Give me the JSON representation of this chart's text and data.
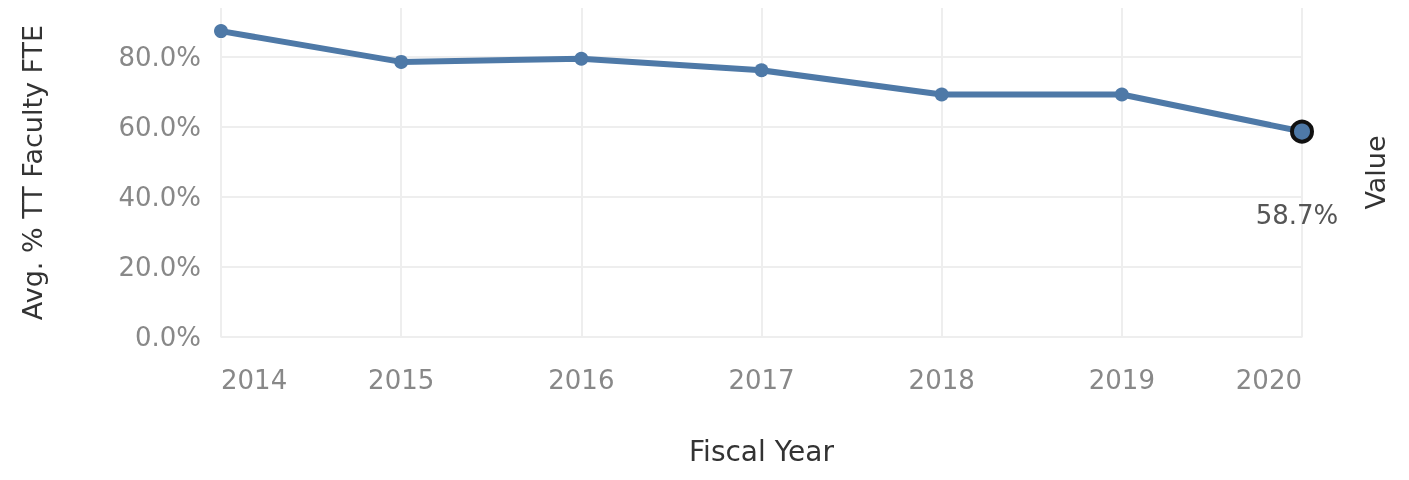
{
  "chart_data": {
    "type": "line",
    "xlabel": "Fiscal Year",
    "ylabel": "Avg. % TT Faculty FTE",
    "y2label": "Value",
    "categories": [
      "2014",
      "2015",
      "2016",
      "2017",
      "2018",
      "2019",
      "2020"
    ],
    "series": [
      {
        "color": "#4e79a7",
        "values": [
          87.4,
          78.6,
          79.5,
          76.2,
          69.3,
          69.3,
          58.7
        ],
        "value_labels": [
          null,
          null,
          null,
          null,
          null,
          null,
          "58.7%"
        ]
      }
    ],
    "ylim": [
      0,
      94
    ],
    "yticks": [
      {
        "value": 0,
        "label": "0.0%"
      },
      {
        "value": 20,
        "label": "20.0%"
      },
      {
        "value": 40,
        "label": "40.0%"
      },
      {
        "value": 60,
        "label": "60.0%"
      },
      {
        "value": 80,
        "label": "80.0%"
      }
    ],
    "grid": true,
    "marker": "circle",
    "line_style": "solid"
  }
}
